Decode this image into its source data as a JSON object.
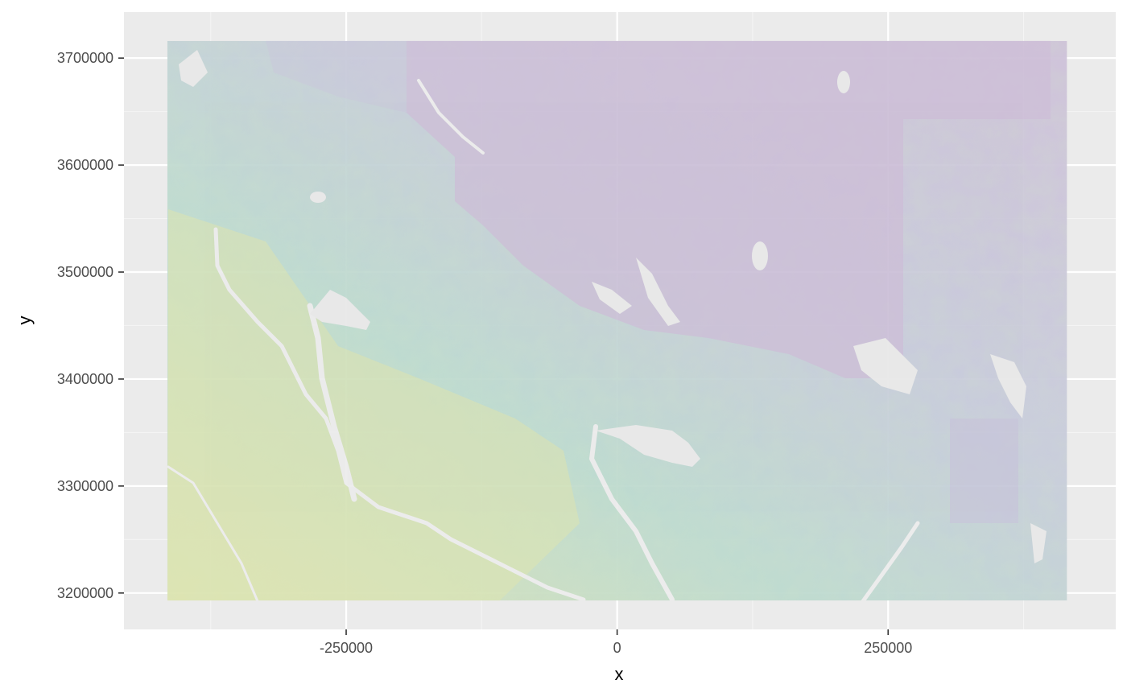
{
  "chart_data": {
    "type": "heatmap",
    "title": "",
    "xlabel": "x",
    "ylabel": "y",
    "x_ticks": [
      -250000,
      0,
      250000
    ],
    "x_tick_labels": [
      "-250000",
      "0",
      "250000"
    ],
    "y_ticks": [
      3200000,
      3300000,
      3400000,
      3500000,
      3600000,
      3700000
    ],
    "y_tick_labels": [
      "3200000",
      "3300000",
      "3400000",
      "3500000",
      "3600000",
      "3700000"
    ],
    "xlim": [
      -455000,
      460000
    ],
    "ylim": [
      3166000,
      3743000
    ],
    "raster_extent": {
      "xmin": -415000,
      "xmax": 415000,
      "ymin": 3193000,
      "ymax": 3716000
    },
    "grid": true,
    "legend": "none",
    "colors": {
      "panel_background": "#ebebeb",
      "grid_major": "#ffffff",
      "grid_minor": "#f4f4f4",
      "raster_high": "#c9bcd8",
      "raster_mid": "#b9d8d1",
      "raster_low": "#d9e2b0",
      "no_data": "#e6e6e6"
    }
  }
}
